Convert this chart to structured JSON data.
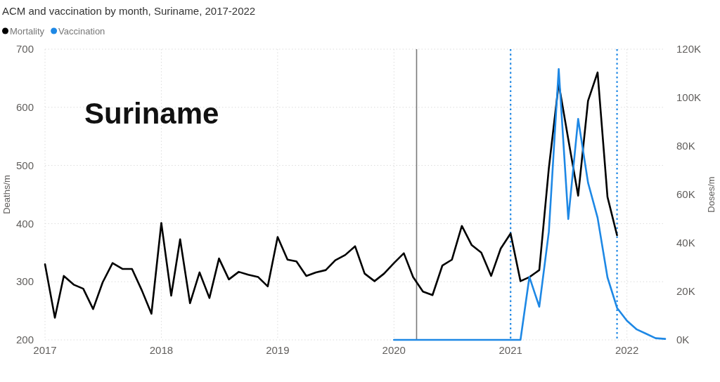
{
  "chart_data": {
    "type": "line",
    "title": "ACM and vaccination by month, Suriname, 2017-2022",
    "ylabel": "Deaths/m",
    "y2label": "Doses/m",
    "x": [
      "2017-01",
      "2017-02",
      "2017-03",
      "2017-04",
      "2017-05",
      "2017-06",
      "2017-07",
      "2017-08",
      "2017-09",
      "2017-10",
      "2017-11",
      "2017-12",
      "2018-01",
      "2018-02",
      "2018-03",
      "2018-04",
      "2018-05",
      "2018-06",
      "2018-07",
      "2018-08",
      "2018-09",
      "2018-10",
      "2018-11",
      "2018-12",
      "2019-01",
      "2019-02",
      "2019-03",
      "2019-04",
      "2019-05",
      "2019-06",
      "2019-07",
      "2019-08",
      "2019-09",
      "2019-10",
      "2019-11",
      "2019-12",
      "2020-01",
      "2020-02",
      "2020-03",
      "2020-04",
      "2020-05",
      "2020-06",
      "2020-07",
      "2020-08",
      "2020-09",
      "2020-10",
      "2020-11",
      "2020-12",
      "2021-01",
      "2021-02",
      "2021-03",
      "2021-04",
      "2021-05",
      "2021-06",
      "2021-07",
      "2021-08",
      "2021-09",
      "2021-10",
      "2021-11",
      "2021-12",
      "2022-01",
      "2022-02",
      "2022-03",
      "2022-04",
      "2022-05"
    ],
    "series": [
      {
        "name": "Mortality",
        "color": "#000000",
        "values": [
          330,
          238,
          310,
          295,
          288,
          253,
          299,
          332,
          322,
          322,
          285,
          245,
          401,
          276,
          373,
          263,
          316,
          272,
          340,
          304,
          317,
          312,
          308,
          292,
          377,
          338,
          335,
          310,
          316,
          320,
          337,
          346,
          361,
          314,
          301,
          314,
          332,
          349,
          308,
          283,
          277,
          328,
          338,
          396,
          363,
          350,
          310,
          357,
          383,
          301,
          308,
          320,
          495,
          641,
          545,
          448,
          611,
          660,
          446,
          380,
          null,
          null,
          null,
          null,
          null
        ]
      },
      {
        "name": "Vaccination",
        "color": "#1e88e5",
        "axis": "y2",
        "values": [
          null,
          null,
          null,
          null,
          null,
          null,
          null,
          null,
          null,
          null,
          null,
          null,
          null,
          null,
          null,
          null,
          null,
          null,
          null,
          null,
          null,
          null,
          null,
          null,
          null,
          null,
          null,
          null,
          null,
          null,
          null,
          null,
          null,
          null,
          null,
          null,
          0,
          0,
          0,
          0,
          0,
          0,
          0,
          0,
          0,
          0,
          0,
          0,
          0,
          0,
          26000,
          13700,
          44600,
          111800,
          49900,
          91200,
          64900,
          50400,
          25800,
          13200,
          7900,
          4300,
          2600,
          700,
          400
        ]
      }
    ],
    "xlim": [
      "2017-01",
      "2022-05"
    ],
    "xticks": [
      "2017",
      "2018",
      "2019",
      "2020",
      "2021",
      "2022"
    ],
    "ylim": [
      200,
      700
    ],
    "yticks": [
      200,
      300,
      400,
      500,
      600,
      700
    ],
    "y2lim": [
      0,
      120000
    ],
    "y2ticks": [
      {
        "value": 0,
        "label": "0K"
      },
      {
        "value": 20000,
        "label": "20K"
      },
      {
        "value": 40000,
        "label": "40K"
      },
      {
        "value": 60000,
        "label": "60K"
      },
      {
        "value": 80000,
        "label": "80K"
      },
      {
        "value": 100000,
        "label": "100K"
      },
      {
        "value": 120000,
        "label": "120K"
      }
    ],
    "ref_lines": [
      {
        "axis": "x",
        "value": "2020-03-12",
        "color": "#7a7a7a",
        "line_style": "solid"
      },
      {
        "axis": "x",
        "value": "2021-01",
        "color": "#1e88e5",
        "line_style": "dotted"
      },
      {
        "axis": "x",
        "value": "2021-12",
        "color": "#1e88e5",
        "line_style": "dotted"
      }
    ],
    "annotations": [
      "Suriname"
    ],
    "legend": "top left",
    "grid": true
  }
}
